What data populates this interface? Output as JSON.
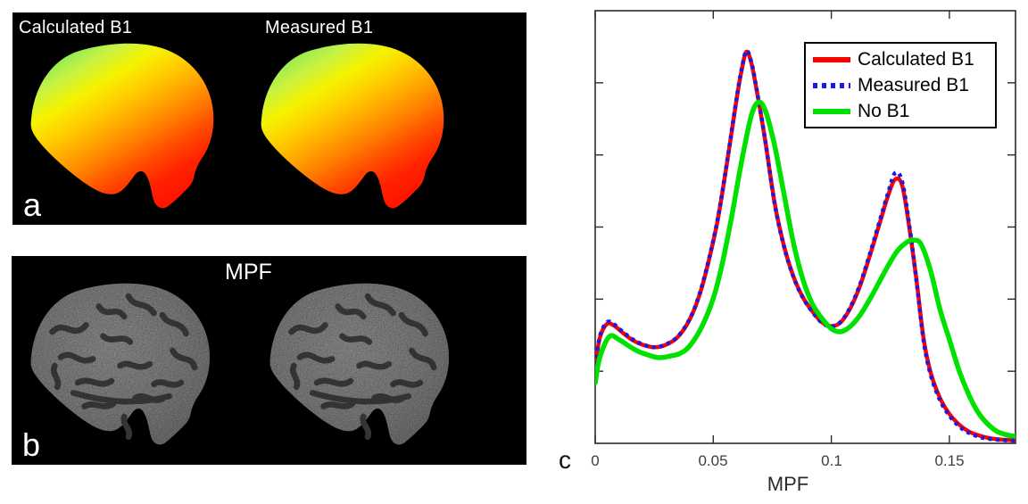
{
  "figure": {
    "background": "#ffffff"
  },
  "panel_a": {
    "tag": "a",
    "label_left": "Calculated B1",
    "label_right": "Measured B1",
    "bg": "#000000",
    "colormap": [
      "#86ea58",
      "#c8f242",
      "#f4f300",
      "#ffd000",
      "#ffa800",
      "#ff7c00",
      "#ff4a00",
      "#ff2300",
      "#ff1400"
    ]
  },
  "panel_b": {
    "tag": "b",
    "title": "MPF",
    "bg": "#000000",
    "tissue_gray": "#a6a6a6",
    "sulci_gray": "#3f3f3f"
  },
  "panel_c": {
    "tag": "c"
  },
  "chart_data": {
    "type": "line",
    "title": "",
    "xlabel": "MPF",
    "ylabel": "",
    "xlim": [
      0,
      0.178
    ],
    "ylim": [
      0,
      1
    ],
    "xticks": [
      0,
      0.05,
      0.1,
      0.15
    ],
    "xtick_labels": [
      "0",
      "0.05",
      "0.1",
      "0.15"
    ],
    "ytick_labels": [],
    "y_interior_ticks": 5,
    "grid": false,
    "axis_color": "#2b2b2b",
    "legend_position": "top-right",
    "series": [
      {
        "name": "Calculated B1",
        "color": "#ff0000",
        "style": "solid",
        "width": 4.5,
        "x": [
          0,
          0.002,
          0.005,
          0.008,
          0.012,
          0.016,
          0.02,
          0.025,
          0.03,
          0.035,
          0.04,
          0.044,
          0.048,
          0.052,
          0.056,
          0.06,
          0.062,
          0.064,
          0.066,
          0.068,
          0.072,
          0.076,
          0.08,
          0.084,
          0.088,
          0.092,
          0.096,
          0.1,
          0.104,
          0.108,
          0.112,
          0.116,
          0.12,
          0.124,
          0.127,
          0.13,
          0.133,
          0.136,
          0.139,
          0.142,
          0.146,
          0.15,
          0.154,
          0.158,
          0.162,
          0.166,
          0.171,
          0.178
        ],
        "y": [
          0.18,
          0.245,
          0.276,
          0.272,
          0.254,
          0.238,
          0.228,
          0.222,
          0.228,
          0.246,
          0.286,
          0.34,
          0.42,
          0.52,
          0.655,
          0.8,
          0.862,
          0.905,
          0.882,
          0.828,
          0.7,
          0.555,
          0.455,
          0.385,
          0.337,
          0.305,
          0.28,
          0.271,
          0.28,
          0.312,
          0.362,
          0.428,
          0.5,
          0.572,
          0.61,
          0.596,
          0.5,
          0.38,
          0.245,
          0.165,
          0.105,
          0.068,
          0.044,
          0.028,
          0.019,
          0.013,
          0.009,
          0.007
        ]
      },
      {
        "name": "Measured B1",
        "color": "#1a1ae6",
        "style": "dotted",
        "width": 4.5,
        "x": [
          0,
          0.002,
          0.005,
          0.008,
          0.012,
          0.016,
          0.02,
          0.025,
          0.03,
          0.035,
          0.04,
          0.044,
          0.048,
          0.052,
          0.056,
          0.06,
          0.062,
          0.064,
          0.066,
          0.068,
          0.072,
          0.076,
          0.08,
          0.084,
          0.088,
          0.092,
          0.096,
          0.1,
          0.104,
          0.108,
          0.112,
          0.116,
          0.12,
          0.124,
          0.127,
          0.13,
          0.133,
          0.136,
          0.139,
          0.142,
          0.146,
          0.15,
          0.154,
          0.158,
          0.162,
          0.166,
          0.171,
          0.178
        ],
        "y": [
          0.18,
          0.248,
          0.28,
          0.275,
          0.256,
          0.24,
          0.229,
          0.222,
          0.229,
          0.247,
          0.287,
          0.342,
          0.422,
          0.522,
          0.657,
          0.802,
          0.865,
          0.907,
          0.884,
          0.83,
          0.7,
          0.554,
          0.454,
          0.384,
          0.336,
          0.304,
          0.279,
          0.27,
          0.281,
          0.314,
          0.365,
          0.432,
          0.505,
          0.578,
          0.625,
          0.605,
          0.505,
          0.378,
          0.24,
          0.16,
          0.1,
          0.064,
          0.04,
          0.025,
          0.016,
          0.011,
          0.008,
          0.006
        ]
      },
      {
        "name": "No B1",
        "color": "#00e100",
        "style": "solid",
        "width": 5.5,
        "x": [
          0,
          0.002,
          0.006,
          0.01,
          0.014,
          0.018,
          0.022,
          0.027,
          0.032,
          0.036,
          0.04,
          0.045,
          0.05,
          0.054,
          0.058,
          0.062,
          0.066,
          0.069,
          0.072,
          0.076,
          0.08,
          0.084,
          0.088,
          0.092,
          0.096,
          0.1,
          0.104,
          0.108,
          0.112,
          0.116,
          0.12,
          0.124,
          0.128,
          0.132,
          0.135,
          0.138,
          0.142,
          0.146,
          0.15,
          0.154,
          0.158,
          0.162,
          0.166,
          0.17,
          0.174,
          0.178
        ],
        "y": [
          0.14,
          0.2,
          0.247,
          0.24,
          0.226,
          0.213,
          0.205,
          0.198,
          0.202,
          0.208,
          0.225,
          0.268,
          0.335,
          0.42,
          0.53,
          0.652,
          0.755,
          0.788,
          0.77,
          0.688,
          0.575,
          0.462,
          0.378,
          0.322,
          0.289,
          0.265,
          0.258,
          0.27,
          0.295,
          0.33,
          0.37,
          0.41,
          0.445,
          0.465,
          0.47,
          0.46,
          0.4,
          0.31,
          0.24,
          0.17,
          0.115,
          0.073,
          0.046,
          0.028,
          0.02,
          0.016
        ]
      }
    ]
  }
}
